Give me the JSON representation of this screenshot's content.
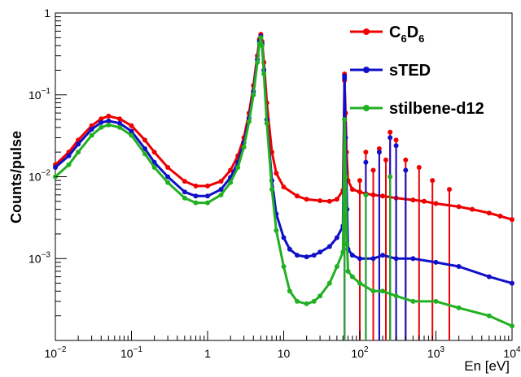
{
  "chart_data": {
    "type": "line",
    "title": "",
    "xlabel": "En [eV]",
    "ylabel": "Counts/pulse",
    "xscale": "log",
    "yscale": "log",
    "xlim": [
      0.01,
      10000
    ],
    "ylim": [
      0.0001,
      1.0
    ],
    "grid": false,
    "legend_position": "top-right",
    "x_ticks": [
      {
        "v": 0.01,
        "mant": "10",
        "exp": "−2"
      },
      {
        "v": 0.1,
        "mant": "10",
        "exp": "−1"
      },
      {
        "v": 1,
        "mant": "1",
        "exp": ""
      },
      {
        "v": 10,
        "mant": "10",
        "exp": ""
      },
      {
        "v": 100,
        "mant": "10",
        "exp": "2"
      },
      {
        "v": 1000,
        "mant": "10",
        "exp": "3"
      },
      {
        "v": 10000,
        "mant": "10",
        "exp": "4"
      }
    ],
    "y_ticks": [
      {
        "v": 1,
        "mant": "1",
        "exp": ""
      },
      {
        "v": 0.1,
        "mant": "10",
        "exp": "−1"
      },
      {
        "v": 0.01,
        "mant": "10",
        "exp": "−2"
      },
      {
        "v": 0.001,
        "mant": "10",
        "exp": "−3"
      }
    ],
    "series": [
      {
        "name": "C6D6",
        "name_parts": {
          "a": "C",
          "s1": "6",
          "b": "D",
          "s2": "6"
        },
        "color": "#ee0000",
        "x": [
          0.01,
          0.015,
          0.02,
          0.03,
          0.04,
          0.05,
          0.07,
          0.1,
          0.15,
          0.2,
          0.3,
          0.5,
          0.7,
          1.0,
          1.5,
          2.0,
          2.5,
          3.0,
          3.5,
          4.0,
          4.5,
          4.8,
          5.0,
          5.2,
          5.5,
          6.0,
          7.0,
          8.0,
          10,
          15,
          20,
          30,
          40,
          50,
          60,
          63,
          65,
          67,
          70,
          80,
          100,
          120,
          150,
          200,
          300,
          500,
          700,
          1000,
          2000,
          3000,
          5000,
          7000,
          10000
        ],
        "y": [
          0.014,
          0.02,
          0.028,
          0.042,
          0.051,
          0.055,
          0.051,
          0.042,
          0.028,
          0.02,
          0.013,
          0.0088,
          0.0077,
          0.0077,
          0.0088,
          0.012,
          0.018,
          0.03,
          0.06,
          0.13,
          0.3,
          0.48,
          0.55,
          0.45,
          0.25,
          0.08,
          0.02,
          0.011,
          0.0075,
          0.0058,
          0.0053,
          0.0051,
          0.005,
          0.0053,
          0.0068,
          0.15,
          0.06,
          0.02,
          0.009,
          0.007,
          0.0065,
          0.0062,
          0.006,
          0.0058,
          0.0055,
          0.0052,
          0.005,
          0.0047,
          0.0043,
          0.004,
          0.0036,
          0.0033,
          0.003
        ],
        "spikes": [
          {
            "x": 63,
            "y": 0.18
          },
          {
            "x": 100,
            "y": 0.009
          },
          {
            "x": 120,
            "y": 0.02
          },
          {
            "x": 150,
            "y": 0.012
          },
          {
            "x": 180,
            "y": 0.022
          },
          {
            "x": 220,
            "y": 0.016
          },
          {
            "x": 250,
            "y": 0.035
          },
          {
            "x": 300,
            "y": 0.028
          },
          {
            "x": 400,
            "y": 0.016
          },
          {
            "x": 600,
            "y": 0.013
          },
          {
            "x": 900,
            "y": 0.009
          },
          {
            "x": 1500,
            "y": 0.007
          }
        ]
      },
      {
        "name": "sTED",
        "color": "#1010c8",
        "x": [
          0.01,
          0.015,
          0.02,
          0.03,
          0.04,
          0.05,
          0.07,
          0.1,
          0.15,
          0.2,
          0.3,
          0.5,
          0.7,
          1.0,
          1.5,
          2.0,
          2.5,
          3.0,
          3.5,
          4.0,
          4.5,
          4.8,
          5.0,
          5.2,
          5.5,
          6.0,
          7.0,
          8.0,
          10,
          12,
          15,
          20,
          25,
          30,
          40,
          50,
          60,
          63,
          65,
          68,
          70,
          80,
          100,
          150,
          200,
          300,
          500,
          1000,
          2000,
          5000,
          10000
        ],
        "y": [
          0.013,
          0.018,
          0.025,
          0.038,
          0.046,
          0.048,
          0.045,
          0.036,
          0.022,
          0.015,
          0.01,
          0.0065,
          0.0058,
          0.0058,
          0.007,
          0.0098,
          0.015,
          0.026,
          0.052,
          0.11,
          0.27,
          0.45,
          0.52,
          0.42,
          0.2,
          0.05,
          0.009,
          0.0035,
          0.0018,
          0.0013,
          0.0011,
          0.00105,
          0.0011,
          0.0012,
          0.0014,
          0.0018,
          0.0025,
          0.16,
          0.03,
          0.004,
          0.0013,
          0.0011,
          0.001,
          0.001,
          0.0011,
          0.001,
          0.001,
          0.0009,
          0.0008,
          0.0006,
          0.0005
        ],
        "spikes": [
          {
            "x": 63,
            "y": 0.17
          },
          {
            "x": 120,
            "y": 0.015
          },
          {
            "x": 180,
            "y": 0.02
          },
          {
            "x": 250,
            "y": 0.03
          },
          {
            "x": 300,
            "y": 0.024
          },
          {
            "x": 400,
            "y": 0.012
          }
        ]
      },
      {
        "name": "stilbene-d12",
        "color": "#22b022",
        "x": [
          0.01,
          0.015,
          0.02,
          0.03,
          0.04,
          0.05,
          0.07,
          0.1,
          0.15,
          0.2,
          0.3,
          0.5,
          0.7,
          1.0,
          1.5,
          2.0,
          2.5,
          3.0,
          3.5,
          4.0,
          4.5,
          4.8,
          5.0,
          5.2,
          5.5,
          6.0,
          7.0,
          8.0,
          10,
          12,
          15,
          20,
          25,
          30,
          40,
          50,
          60,
          63,
          65,
          68,
          70,
          80,
          100,
          150,
          200,
          300,
          500,
          1000,
          2000,
          5000,
          10000
        ],
        "y": [
          0.01,
          0.014,
          0.02,
          0.032,
          0.04,
          0.043,
          0.04,
          0.032,
          0.019,
          0.013,
          0.0085,
          0.0055,
          0.0048,
          0.0048,
          0.006,
          0.0085,
          0.013,
          0.023,
          0.047,
          0.1,
          0.25,
          0.42,
          0.5,
          0.4,
          0.18,
          0.045,
          0.007,
          0.0022,
          0.0008,
          0.0004,
          0.0003,
          0.00028,
          0.0003,
          0.00035,
          0.0005,
          0.0008,
          0.0012,
          0.05,
          0.01,
          0.0015,
          0.0007,
          0.0006,
          0.0005,
          0.0004,
          0.0004,
          0.00035,
          0.0003,
          0.0003,
          0.00025,
          0.0002,
          0.00015
        ],
        "spikes": [
          {
            "x": 63,
            "y": 0.05
          },
          {
            "x": 120,
            "y": 0.006
          },
          {
            "x": 250,
            "y": 0.01
          }
        ]
      }
    ]
  }
}
